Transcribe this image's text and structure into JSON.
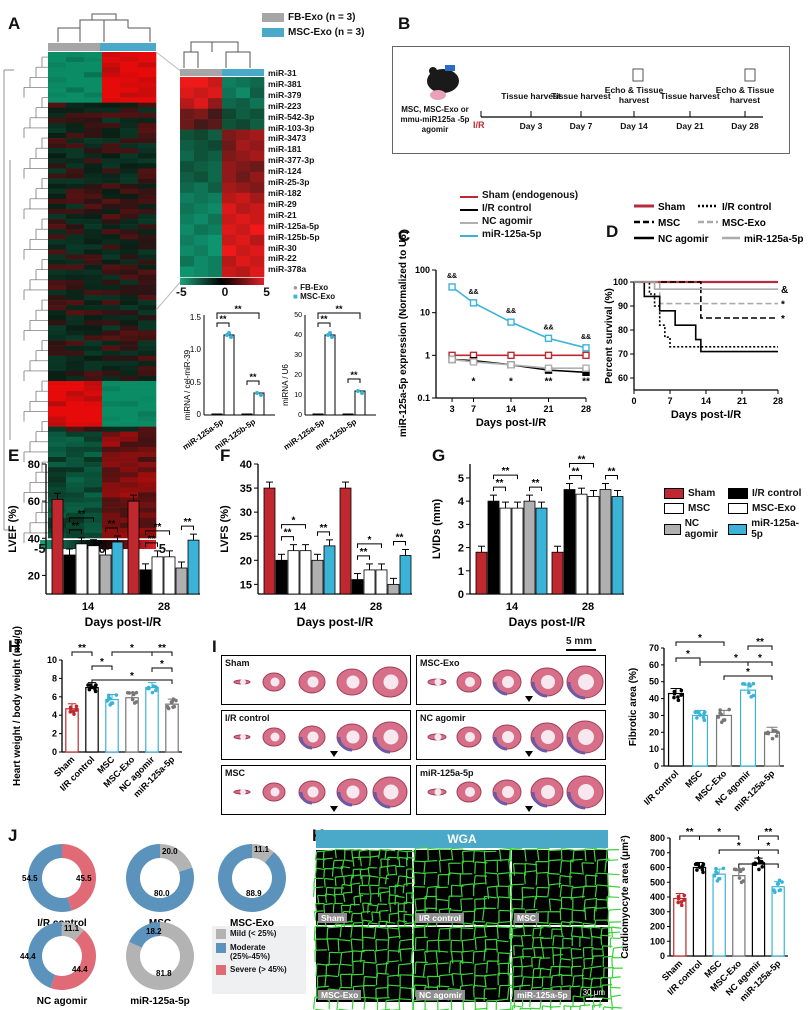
{
  "panels": {
    "A": {
      "label": "A",
      "legend": [
        {
          "name": "FB-Exo (n = 3)",
          "color": "#a6a6a6"
        },
        {
          "name": "MSC-Exo (n = 3)",
          "color": "#4aa8c8"
        }
      ],
      "colorbar_ticks": [
        "-5",
        "0",
        "5"
      ],
      "zoom_colorbar_ticks": [
        "-5",
        "0",
        "5"
      ],
      "mirnas": [
        "miR-31",
        "miR-381",
        "miR-379",
        "miR-223",
        "miR-542-3p",
        "miR-103-3p",
        "miR-3473",
        "miR-181",
        "miR-377-3p",
        "miR-124",
        "miR-25-3p",
        "miR-182",
        "miR-29",
        "miR-21",
        "miR-125a-5p",
        "miR-125b-5p",
        "miR-30",
        "miR-22",
        "miR-378a"
      ],
      "bar_legend": [
        "FB-Exo",
        "MSC-Exo"
      ],
      "bar1": {
        "ylabel": "miRNA / cel-miR-39",
        "yticks": [
          "0",
          "0.5",
          "1.0",
          "1.5"
        ],
        "categories": [
          "miR-125a-5p",
          "miR-125b-5p"
        ]
      },
      "bar2": {
        "ylabel": "miRNA / U6",
        "yticks": [
          "0",
          "10",
          "20",
          "30",
          "40",
          "50"
        ],
        "categories": [
          "miR-125a-5p",
          "miR-125b-5p"
        ]
      },
      "sig": "**"
    },
    "B": {
      "label": "B",
      "mouse_caption": "MSC, MSC-Exo or mmu-miR125a -5p agomir",
      "ir_label": "I/R",
      "timeline": [
        {
          "day": "Day 3",
          "event": "Tissue harvest"
        },
        {
          "day": "Day 7",
          "event": "Tissue harvest"
        },
        {
          "day": "Day 14",
          "event": "Echo & Tissue harvest"
        },
        {
          "day": "Day 21",
          "event": "Tissue harvest"
        },
        {
          "day": "Day 28",
          "event": "Echo & Tissue harvest"
        }
      ]
    },
    "C": {
      "label": "C",
      "chart_data": {
        "type": "line",
        "x": [
          3,
          7,
          14,
          21,
          28
        ],
        "xlabel": "Days post-I/R",
        "ylabel": "miR-125a-5p expression (Normalized to U6)",
        "yticks": [
          "0.1",
          "1",
          "10",
          "100"
        ],
        "series": [
          {
            "name": "Sham (endogenous)",
            "color": "#c0282f",
            "values": [
              1.0,
              1.0,
              1.0,
              1.0,
              1.0
            ]
          },
          {
            "name": "I/R control",
            "color": "#000000",
            "values": [
              0.8,
              0.75,
              0.6,
              0.45,
              0.4
            ]
          },
          {
            "name": "NC agomir",
            "color": "#b0b0b0",
            "values": [
              0.8,
              0.7,
              0.6,
              0.5,
              0.5
            ]
          },
          {
            "name": "miR-125a-5p",
            "color": "#3bb3d8",
            "values": [
              40,
              17,
              6,
              2.5,
              1.5
            ]
          }
        ],
        "top_annot": [
          "&&",
          "&&",
          "&&",
          "&&",
          "&&"
        ],
        "bottom_annot": [
          "",
          "*",
          "*",
          "**",
          "**"
        ]
      }
    },
    "D": {
      "label": "D",
      "chart_data": {
        "type": "line",
        "xlabel": "Days post-I/R",
        "ylabel": "Percent survival (%)",
        "xticks": [
          "0",
          "7",
          "14",
          "21",
          "28"
        ],
        "yticks": [
          "60",
          "70",
          "80",
          "90",
          "100"
        ],
        "legend": [
          "Sham",
          "I/R control",
          "MSC",
          "MSC-Exo",
          "NC agomir",
          "miR-125a-5p"
        ],
        "end_annot": [
          "&",
          "*",
          "*"
        ]
      }
    },
    "E": {
      "label": "E",
      "chart_data": {
        "type": "bar",
        "ylabel": "LVEF (%)",
        "xlabel": "Days post-I/R",
        "categories": [
          "14",
          "28"
        ],
        "yticks": [
          "20",
          "40",
          "60",
          "80"
        ],
        "series": [
          {
            "name": "Sham",
            "values": [
              61,
              60
            ]
          },
          {
            "name": "I/R control",
            "values": [
              31,
              23
            ]
          },
          {
            "name": "MSC",
            "values": [
              37,
              30
            ]
          },
          {
            "name": "MSC-Exo",
            "values": [
              36,
              30
            ]
          },
          {
            "name": "NC agomir",
            "values": [
              31,
              24
            ]
          },
          {
            "name": "miR-125a-5p",
            "values": [
              38,
              39
            ]
          }
        ]
      }
    },
    "F": {
      "label": "F",
      "chart_data": {
        "type": "bar",
        "ylabel": "LVFS (%)",
        "xlabel": "Days post-I/R",
        "categories": [
          "14",
          "28"
        ],
        "yticks": [
          "15",
          "20",
          "25",
          "30",
          "35",
          "40"
        ],
        "series": [
          {
            "name": "Sham",
            "values": [
              35,
              35
            ]
          },
          {
            "name": "I/R control",
            "values": [
              20,
              16
            ]
          },
          {
            "name": "MSC",
            "values": [
              22,
              18
            ]
          },
          {
            "name": "MSC-Exo",
            "values": [
              22,
              18
            ]
          },
          {
            "name": "NC agomir",
            "values": [
              20,
              15
            ]
          },
          {
            "name": "miR-125a-5p",
            "values": [
              23,
              21
            ]
          }
        ]
      }
    },
    "G": {
      "label": "G",
      "chart_data": {
        "type": "bar",
        "ylabel": "LVIDs (mm)",
        "xlabel": "Days post-I/R",
        "categories": [
          "14",
          "28"
        ],
        "yticks": [
          "0",
          "1",
          "2",
          "3",
          "4",
          "5"
        ],
        "series": [
          {
            "name": "Sham",
            "values": [
              1.8,
              1.8
            ]
          },
          {
            "name": "I/R control",
            "values": [
              4.0,
              4.5
            ]
          },
          {
            "name": "MSC",
            "values": [
              3.7,
              4.3
            ]
          },
          {
            "name": "MSC-Exo",
            "values": [
              3.7,
              4.2
            ]
          },
          {
            "name": "NC agomir",
            "values": [
              4.0,
              4.5
            ]
          },
          {
            "name": "miR-125a-5p",
            "values": [
              3.7,
              4.2
            ]
          }
        ]
      },
      "legend": [
        {
          "name": "Sham",
          "color": "#c0282f"
        },
        {
          "name": "I/R control",
          "color": "#000000"
        },
        {
          "name": "MSC",
          "color": "#ffffff"
        },
        {
          "name": "MSC-Exo",
          "color": "#ffffff"
        },
        {
          "name": "NC agomir",
          "color": "#b0b0b0"
        },
        {
          "name": "miR-125a-5p",
          "color": "#3bb3d8"
        }
      ]
    },
    "H": {
      "label": "H",
      "chart_data": {
        "type": "bar",
        "ylabel": "Heart weight / body weight (mg/g)",
        "categories": [
          "Sham",
          "I/R control",
          "MSC",
          "MSC-Exo",
          "NC agomir",
          "miR-125a-5p"
        ],
        "values": [
          4.7,
          7.0,
          5.7,
          5.9,
          7.0,
          5.2
        ],
        "yticks": [
          "0",
          "2",
          "4",
          "6",
          "8",
          "10"
        ]
      }
    },
    "I": {
      "label": "I",
      "scale": "5 mm",
      "groups": [
        "Sham",
        "MSC-Exo",
        "I/R control",
        "NC agomir",
        "MSC",
        "miR-125a-5p"
      ],
      "chart_data": {
        "type": "bar",
        "ylabel": "Fibrotic area (%)",
        "categories": [
          "I/R control",
          "MSC",
          "MSC-Exo",
          "NC agomir",
          "miR-125a-5p"
        ],
        "values": [
          43,
          30,
          30,
          45,
          20
        ],
        "yticks": [
          "0",
          "10",
          "20",
          "30",
          "40",
          "50",
          "60",
          "70"
        ]
      }
    },
    "J": {
      "label": "J",
      "donuts": [
        {
          "name": "I/R control",
          "mild": 0,
          "moderate": 54.5,
          "severe": 45.5,
          "labels": [
            "54.5",
            "45.5"
          ]
        },
        {
          "name": "MSC",
          "mild": 20.0,
          "moderate": 80.0,
          "severe": 0,
          "labels": [
            "20.0",
            "80.0"
          ]
        },
        {
          "name": "MSC-Exo",
          "mild": 11.1,
          "moderate": 88.9,
          "severe": 0,
          "labels": [
            "11.1",
            "88.9"
          ]
        },
        {
          "name": "NC agomir",
          "mild": 11.1,
          "moderate": 44.4,
          "severe": 44.4,
          "labels": [
            "11.1",
            "44.4",
            "44.4"
          ]
        },
        {
          "name": "miR-125a-5p",
          "mild": 81.8,
          "moderate": 18.2,
          "severe": 0,
          "labels": [
            "18.2",
            "81.8"
          ]
        }
      ],
      "legend": [
        {
          "name": "Mild (< 25%)",
          "color": "#b3b3b3"
        },
        {
          "name": "Moderate (25%-45%)",
          "color": "#5b93bd"
        },
        {
          "name": "Severe (> 45%)",
          "color": "#e06b76"
        }
      ]
    },
    "K": {
      "label": "K",
      "header": "WGA",
      "tiles": [
        "Sham",
        "I/R control",
        "MSC",
        "MSC-Exo",
        "NC agomir",
        "miR-125a-5p"
      ],
      "scale": "30 μm",
      "chart_data": {
        "type": "bar",
        "ylabel": "Cardiomyocyte area (μm²)",
        "categories": [
          "Sham",
          "I/R control",
          "MSC",
          "MSC-Exo",
          "NC agomir",
          "miR-125a-5p"
        ],
        "values": [
          390,
          600,
          555,
          545,
          630,
          470
        ],
        "yticks": [
          "0",
          "100",
          "200",
          "300",
          "400",
          "500",
          "600",
          "700",
          "800"
        ]
      }
    }
  }
}
